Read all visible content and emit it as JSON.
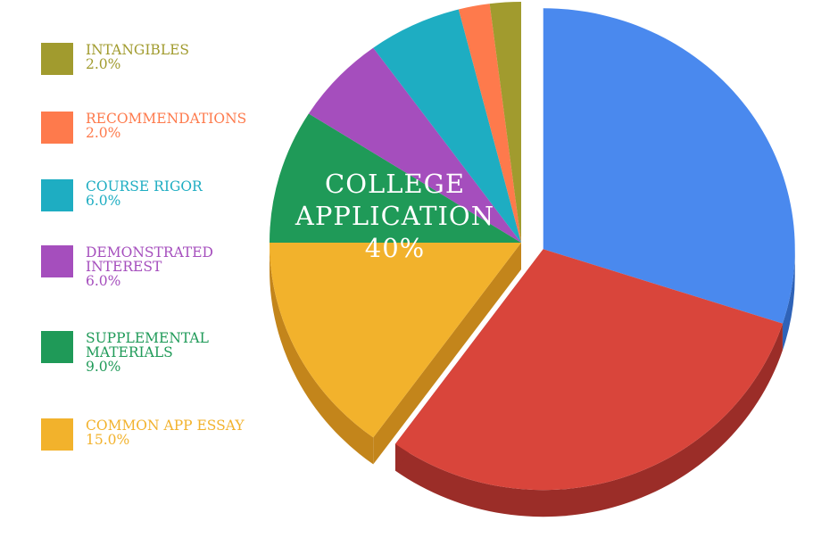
{
  "chart_data": {
    "type": "pie",
    "title": "",
    "center_label": {
      "line1": "COLLEGE",
      "line2": "APPLICATION",
      "value": "40%"
    },
    "slices": [
      {
        "label": "BLUE SLICE (UNLABELED)",
        "value": 30.0,
        "color": "#4a89ee",
        "side": "#2f63b8",
        "labeled": false
      },
      {
        "label": "RED SLICE (UNLABELED)",
        "value": 30.0,
        "color": "#d9453b",
        "side": "#9b2d28",
        "labeled": false
      },
      {
        "label": "COMMON APP ESSAY",
        "value_text": "15.0%",
        "value": 15.0,
        "color": "#f2b22c",
        "side": "#c3851b",
        "labeled": true
      },
      {
        "label": "SUPPLEMENTAL\nMATERIALS",
        "value_text": "9.0%",
        "value": 9.0,
        "color": "#1f9a58",
        "side": "#13703e",
        "labeled": true
      },
      {
        "label": "DEMONSTRATED\nINTEREST",
        "value_text": "6.0%",
        "value": 6.0,
        "color": "#a54ebd",
        "side": "#7a3490",
        "labeled": true
      },
      {
        "label": "COURSE RIGOR",
        "value_text": "6.0%",
        "value": 6.0,
        "color": "#1eadc2",
        "side": "#148496",
        "labeled": true
      },
      {
        "label": "RECOMMENDATIONS",
        "value_text": "2.0%",
        "value": 2.0,
        "color": "#fe7a4c",
        "side": "#c85a34",
        "labeled": true
      },
      {
        "label": "INTANGIBLES",
        "value_text": "2.0%",
        "value": 2.0,
        "color": "#a19b2e",
        "side": "#77721f",
        "labeled": true
      }
    ],
    "legend": [
      {
        "label": "INTANGIBLES",
        "value": "2.0%",
        "color": "#a19b2e"
      },
      {
        "label": "RECOMMENDATIONS",
        "value": "2.0%",
        "color": "#fe7a4c"
      },
      {
        "label": "COURSE RIGOR",
        "value": "6.0%",
        "color": "#1eadc2"
      },
      {
        "label": "DEMONSTRATED\nINTEREST",
        "value": "6.0%",
        "color": "#a54ebd"
      },
      {
        "label": "SUPPLEMENTAL\nMATERIALS",
        "value": "9.0%",
        "color": "#1f9a58"
      },
      {
        "label": "COMMON APP ESSAY",
        "value": "15.0%",
        "color": "#f2b22c"
      }
    ],
    "legend_placement": "left",
    "grid": false
  }
}
